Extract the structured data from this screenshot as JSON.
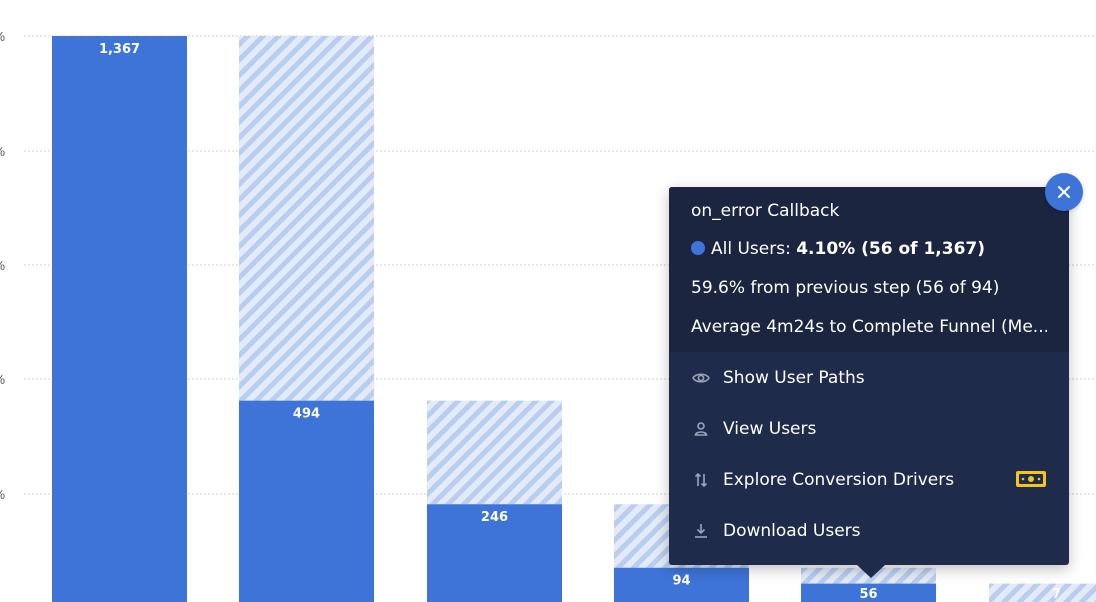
{
  "chart_data": {
    "type": "bar",
    "categories": [
      "",
      "",
      "",
      "",
      "",
      ""
    ],
    "series": [
      {
        "values": [
          1367,
          494,
          246,
          94,
          56,
          7
        ]
      }
    ],
    "dropoff_reference": [
      null,
      1367,
      494,
      246,
      94,
      56
    ],
    "data_labels": [
      "1,367",
      "494",
      "246",
      "94",
      "56",
      "7"
    ],
    "ylim": [
      0,
      1367
    ],
    "y_tick_labels": [
      "%",
      "%",
      "%",
      "%",
      "%"
    ],
    "grid": true,
    "colors": {
      "bar": "#3e74d8",
      "dropoff_hatch": "#c5d6f3",
      "grid": "#cfcfcf"
    }
  },
  "popover": {
    "title": "on_error Callback",
    "series_label": "All Users:",
    "series_value": "4.10% (56 of 1,367)",
    "from_previous": "59.6% from previous step (56 of 94)",
    "average_time": "Average 4m24s to Complete Funnel (Me...",
    "menu": [
      {
        "label": "Show User Paths",
        "icon": "eye-icon"
      },
      {
        "label": "View Users",
        "icon": "user-icon"
      },
      {
        "label": "Explore Conversion Drivers",
        "icon": "sort-arrows-icon"
      },
      {
        "label": "Download Users",
        "icon": "download-icon"
      }
    ],
    "premium_icon": "money-bill-icon",
    "close_icon": "close-icon"
  }
}
